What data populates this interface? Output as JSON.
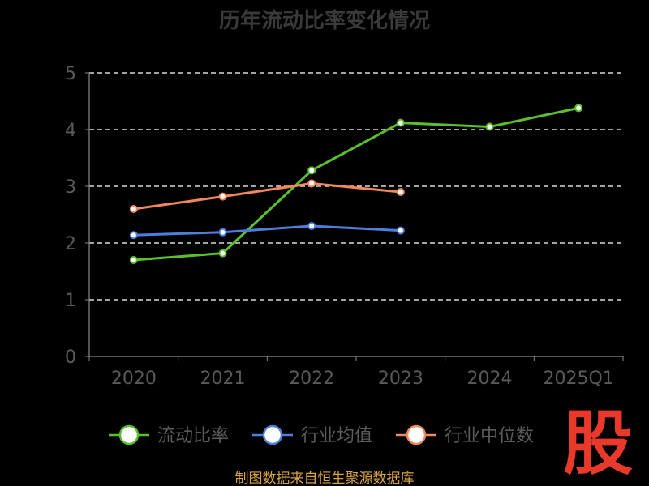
{
  "chart_data": {
    "type": "line",
    "title": "历年流动比率变化情况",
    "categories": [
      "2020",
      "2021",
      "2022",
      "2023",
      "2024",
      "2025Q1"
    ],
    "ylim": [
      0,
      5
    ],
    "yticks": [
      "0",
      "1",
      "2",
      "3",
      "4",
      "5"
    ],
    "grid": true,
    "legend_position": "bottom",
    "series": [
      {
        "name": "流动比率",
        "color": "#5ac02c",
        "values": [
          1.7,
          1.82,
          3.28,
          4.12,
          4.05,
          4.38
        ]
      },
      {
        "name": "行业均值",
        "color": "#4f7fdc",
        "values": [
          2.14,
          2.19,
          2.3,
          2.22,
          null,
          null
        ]
      },
      {
        "name": "行业中位数",
        "color": "#f2875b",
        "values": [
          2.6,
          2.82,
          3.05,
          2.9,
          null,
          null
        ]
      }
    ]
  },
  "source": "制图数据来自恒生聚源数据库",
  "logo": "股"
}
